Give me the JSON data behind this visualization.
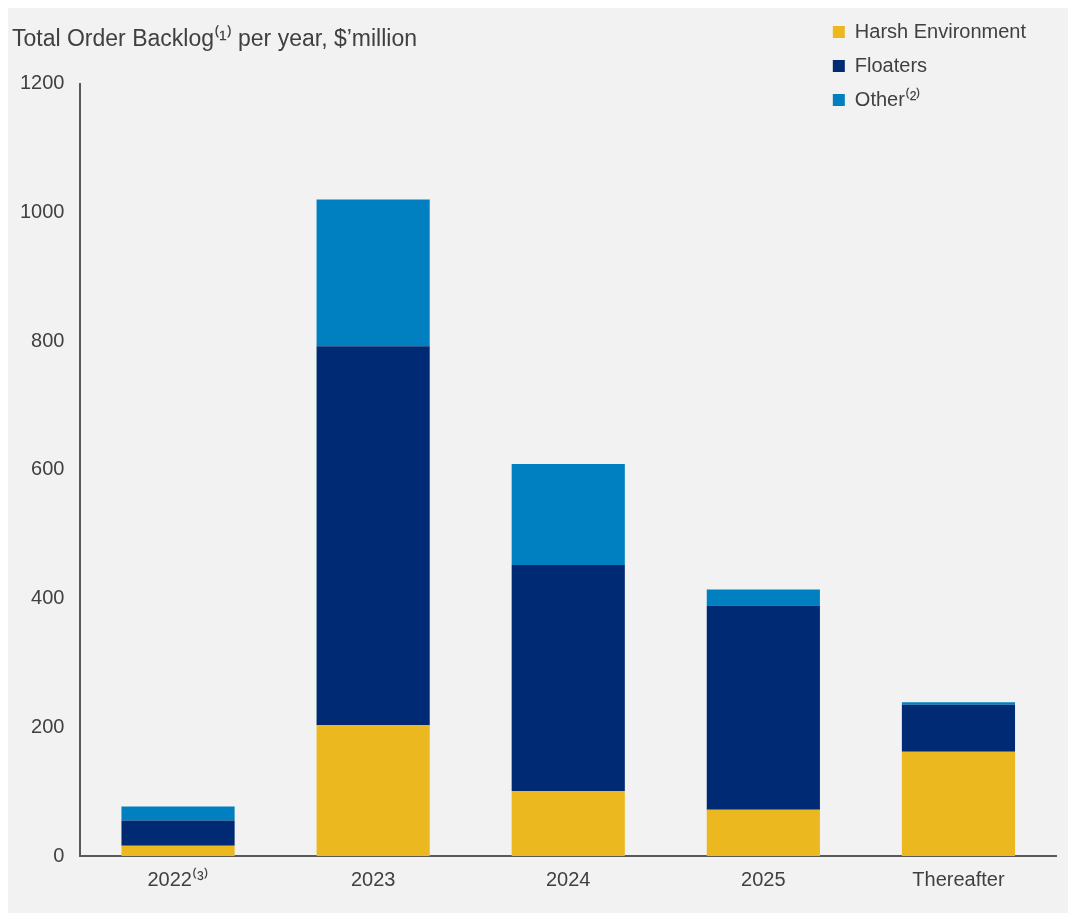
{
  "chart_data": {
    "type": "bar",
    "title": "Total Order Backlog⁽¹⁾ per year, $’million",
    "categories": [
      "2022⁽³⁾",
      "2023",
      "2024",
      "2025",
      "Thereafter"
    ],
    "stacked": true,
    "ylim": [
      0,
      1200
    ],
    "yticks": [
      0,
      200,
      400,
      600,
      800,
      1000,
      1200
    ],
    "grid": false,
    "legend": "top right",
    "series": [
      {
        "name": "Harsh Environment",
        "color": "#ebb81f",
        "values": [
          16,
          203,
          101,
          72,
          162
        ]
      },
      {
        "name": "Floaters",
        "color": "#002a73",
        "values": [
          39,
          589,
          351,
          317,
          73
        ]
      },
      {
        "name": "Other⁽²⁾",
        "color": "#0080c0",
        "values": [
          22,
          228,
          157,
          25,
          4
        ]
      }
    ]
  }
}
